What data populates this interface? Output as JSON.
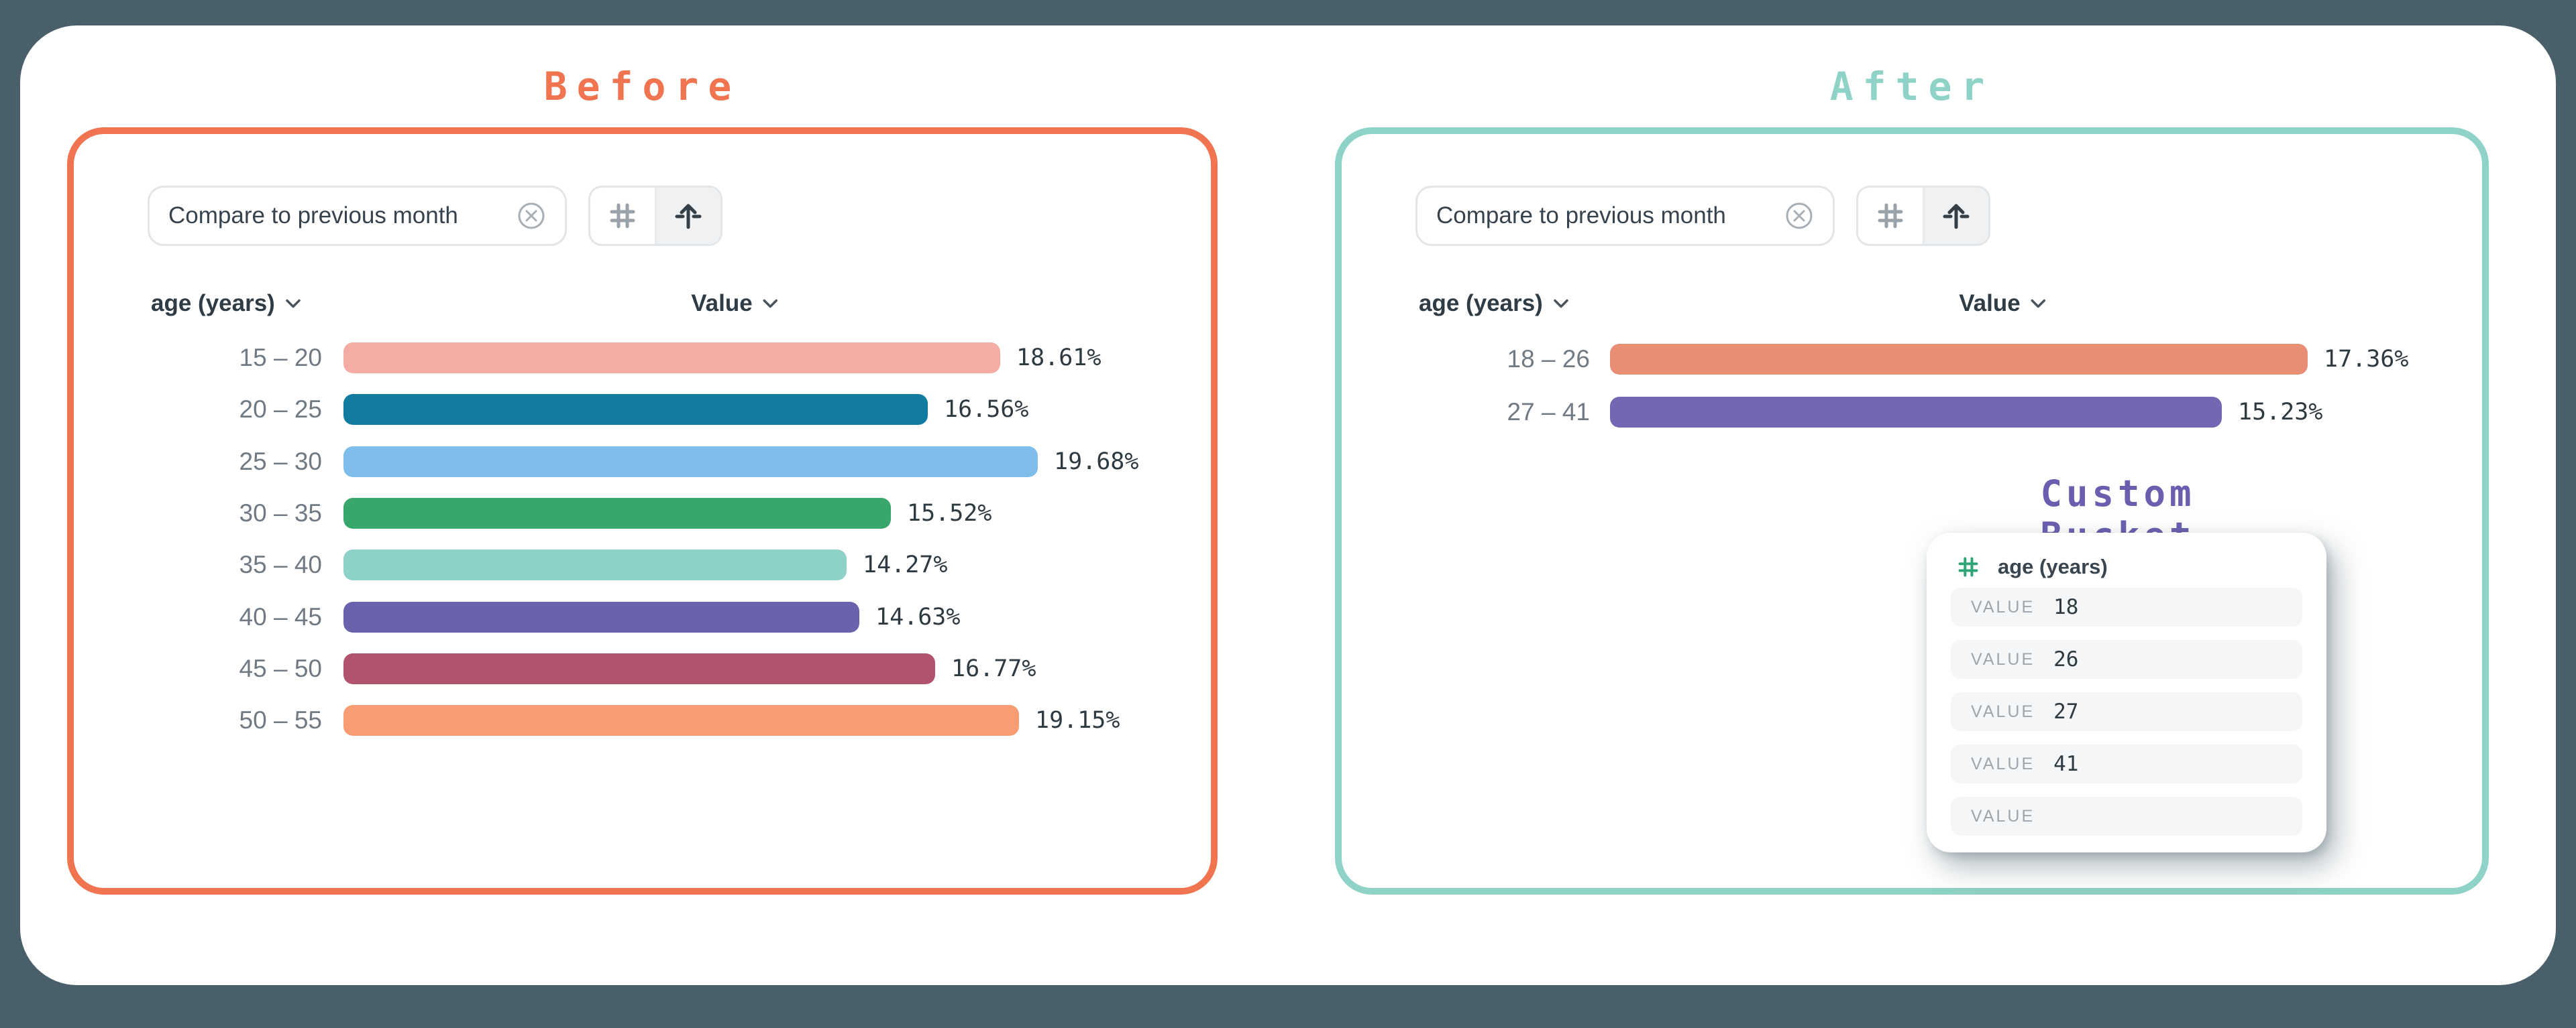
{
  "page": {
    "background_color": "#49606B",
    "card_color": "#FFFFFF"
  },
  "before": {
    "title": "Before",
    "accent_color": "#F0744F",
    "chip_label": "Compare to previous month",
    "columns": {
      "dimension": "age (years)",
      "value": "Value"
    },
    "rows": [
      {
        "label": "15 – 20",
        "value": "18.61%",
        "pct": 18.61,
        "color": "#F4ACA4"
      },
      {
        "label": "20 – 25",
        "value": "16.56%",
        "pct": 16.56,
        "color": "#117C9F"
      },
      {
        "label": "25 – 30",
        "value": "19.68%",
        "pct": 19.68,
        "color": "#7FBDEA"
      },
      {
        "label": "30 – 35",
        "value": "15.52%",
        "pct": 15.52,
        "color": "#39A76C"
      },
      {
        "label": "35 – 40",
        "value": "14.27%",
        "pct": 14.27,
        "color": "#8ED1C9"
      },
      {
        "label": "40 – 45",
        "value": "14.63%",
        "pct": 14.63,
        "color": "#6962AD"
      },
      {
        "label": "45 – 50",
        "value": "16.77%",
        "pct": 16.77,
        "color": "#B1536E"
      },
      {
        "label": "50 – 55",
        "value": "19.15%",
        "pct": 19.15,
        "color": "#F89C74"
      }
    ]
  },
  "after": {
    "title": "After",
    "accent_color": "#8FD2C7",
    "chip_label": "Compare to previous month",
    "columns": {
      "dimension": "age (years)",
      "value": "Value"
    },
    "rows": [
      {
        "label": "18 – 26",
        "value": "17.36%",
        "pct": 17.36,
        "color": "#E78E74"
      },
      {
        "label": "27 – 41",
        "value": "15.23%",
        "pct": 15.23,
        "color": "#7466B2"
      }
    ],
    "custom_bucket": {
      "title": "Custom Bucket",
      "accent_color": "#6A5FAE",
      "field": "age (years)",
      "value_label": "VALUE",
      "values": [
        "18",
        "26",
        "27",
        "41",
        ""
      ]
    }
  },
  "chart_data": [
    {
      "type": "bar",
      "orientation": "horizontal",
      "title": "Before",
      "categories": [
        "15 – 20",
        "20 – 25",
        "25 – 30",
        "30 – 35",
        "35 – 40",
        "40 – 45",
        "45 – 50",
        "50 – 55"
      ],
      "values": [
        18.61,
        16.56,
        19.68,
        15.52,
        14.27,
        14.63,
        16.77,
        19.15
      ],
      "unit": "%",
      "xlabel": "Value",
      "ylabel": "age (years)",
      "data_labels": true,
      "grid": false
    },
    {
      "type": "bar",
      "orientation": "horizontal",
      "title": "After",
      "categories": [
        "18 – 26",
        "27 – 41"
      ],
      "values": [
        17.36,
        15.23
      ],
      "unit": "%",
      "xlabel": "Value",
      "ylabel": "age (years)",
      "data_labels": true,
      "grid": false
    }
  ]
}
